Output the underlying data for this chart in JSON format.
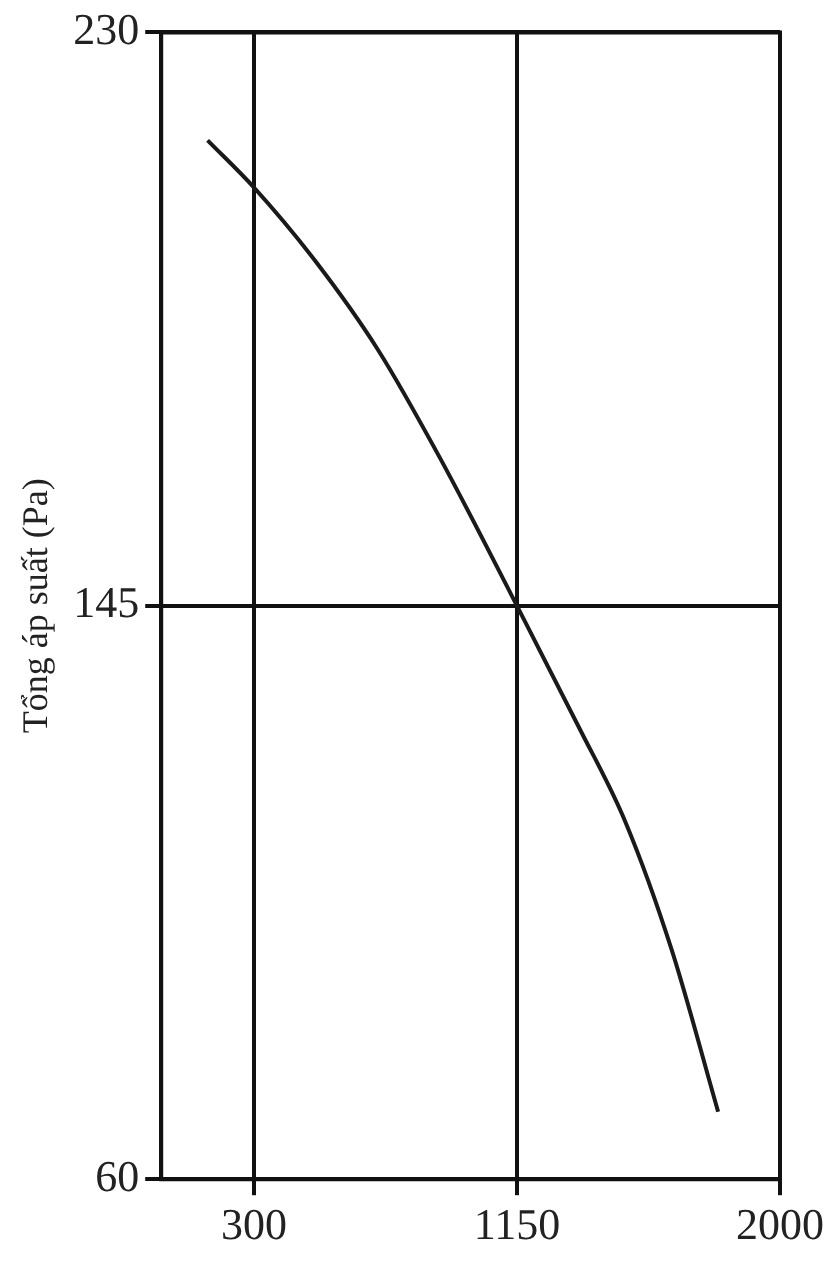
{
  "chart_data": {
    "type": "line",
    "ylabel": "Tổng áp suất (Pa)",
    "series": [
      {
        "color": "#1a1a1a",
        "x": [
          150,
          300,
          500,
          700,
          900,
          1150,
          1350,
          1500,
          1650,
          1800
        ],
        "values": [
          214,
          207,
          196,
          183,
          167,
          145,
          127,
          113,
          94,
          70
        ]
      }
    ],
    "xlim": [
      0,
      2000
    ],
    "xticks": [
      300,
      1150,
      2000
    ],
    "ylim": [
      60,
      230
    ],
    "yticks": [
      60,
      145,
      230
    ],
    "grid": true,
    "legend": false,
    "marker": "none",
    "line_style": "solid"
  }
}
